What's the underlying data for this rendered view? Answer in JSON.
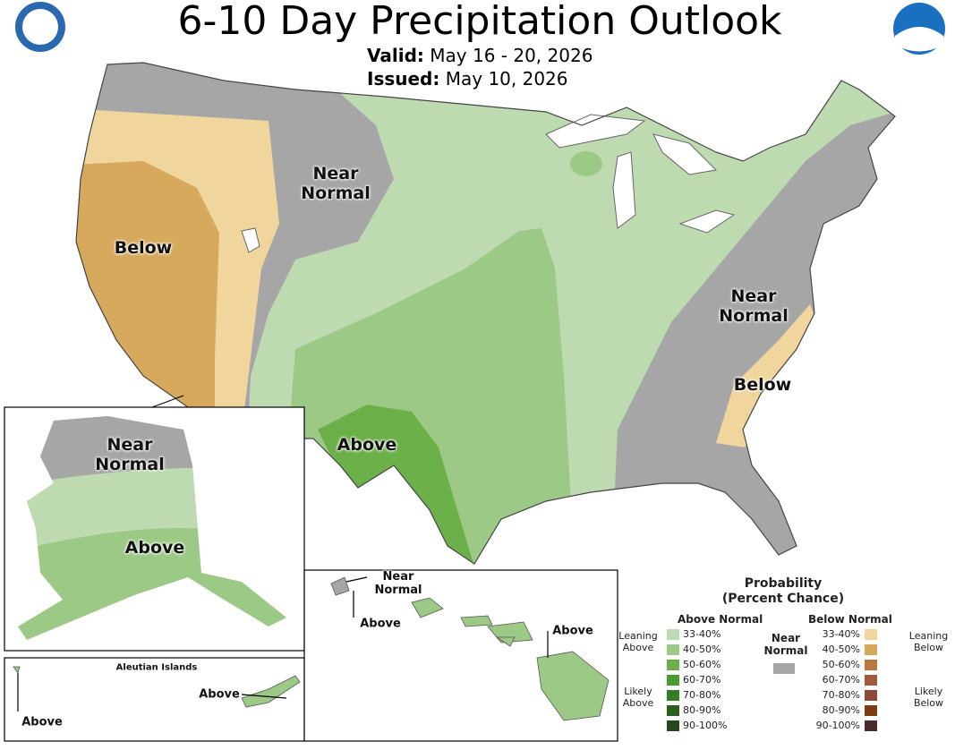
{
  "header": {
    "title": "6-10 Day Precipitation Outlook",
    "valid_label": "Valid:",
    "valid_dates": "May 16 - 20, 2026",
    "issued_label": "Issued:",
    "issued_date": "May 10, 2026"
  },
  "conus": {
    "labels": [
      "Near Normal",
      "Below",
      "Near Normal",
      "Below",
      "Above"
    ]
  },
  "alaska": {
    "labels": [
      "Near Normal",
      "Above"
    ]
  },
  "aleutians": {
    "title": "Aleutian Islands",
    "labels": [
      "Above",
      "Above"
    ]
  },
  "hawaii": {
    "labels": [
      "Near Normal",
      "Above",
      "Above"
    ]
  },
  "legend": {
    "title": "Probability",
    "subtitle": "(Percent Chance)",
    "above_title": "Above Normal",
    "below_title": "Below Normal",
    "near_title": "Near Normal",
    "near_color": "#a6a6a6",
    "above_bins": [
      {
        "label": "33-40%",
        "color": "#bddab0"
      },
      {
        "label": "40-50%",
        "color": "#9cca86"
      },
      {
        "label": "50-60%",
        "color": "#6cb04a"
      },
      {
        "label": "60-70%",
        "color": "#4b9a33"
      },
      {
        "label": "70-80%",
        "color": "#357e24"
      },
      {
        "label": "80-90%",
        "color": "#2c5f1c"
      },
      {
        "label": "90-100%",
        "color": "#23481b"
      }
    ],
    "below_bins": [
      {
        "label": "33-40%",
        "color": "#f0d69d"
      },
      {
        "label": "40-50%",
        "color": "#d6a95d"
      },
      {
        "label": "50-60%",
        "color": "#b9783e"
      },
      {
        "label": "60-70%",
        "color": "#a0593a"
      },
      {
        "label": "70-80%",
        "color": "#8f4a3c"
      },
      {
        "label": "80-90%",
        "color": "#7a3e12"
      },
      {
        "label": "90-100%",
        "color": "#4a2b27"
      }
    ],
    "groups": [
      "Leaning Above",
      "Likely Above",
      "Leaning Below",
      "Likely Below"
    ]
  }
}
